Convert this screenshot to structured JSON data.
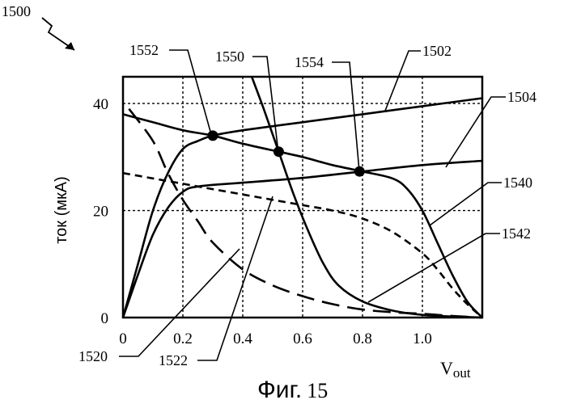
{
  "figure": {
    "number_label": "1500",
    "caption_prefix": "Фиг.",
    "caption_number": "15"
  },
  "chart_data": {
    "type": "line",
    "xlabel_main": "V",
    "xlabel_sub": "out",
    "ylabel": "ток (мкА)",
    "xlim": [
      0,
      1.2
    ],
    "ylim": [
      0,
      45
    ],
    "x_tick_values": [
      0,
      0.2,
      0.4,
      0.6,
      0.8,
      1.0
    ],
    "x_tick_labels": [
      "0",
      "0.2",
      "0.4",
      "0.6",
      "0.8",
      "1.0"
    ],
    "y_tick_values": [
      0,
      20,
      40
    ],
    "y_tick_labels": [
      "0",
      "20",
      "40"
    ],
    "x_grid": [
      0.2,
      0.4,
      0.6,
      0.8,
      1.0
    ],
    "y_grid": [
      20,
      40
    ],
    "grid": true,
    "series": [
      {
        "name": "1502",
        "style": "solid",
        "points": [
          [
            0,
            0
          ],
          [
            0.05,
            10
          ],
          [
            0.1,
            20
          ],
          [
            0.15,
            27
          ],
          [
            0.2,
            31.5
          ],
          [
            0.25,
            33
          ],
          [
            0.3,
            34
          ],
          [
            0.4,
            35
          ],
          [
            0.6,
            36.5
          ],
          [
            0.8,
            38
          ],
          [
            1.0,
            39.5
          ],
          [
            1.2,
            41
          ]
        ]
      },
      {
        "name": "1504",
        "style": "solid",
        "points": [
          [
            0,
            0
          ],
          [
            0.05,
            8
          ],
          [
            0.1,
            15.5
          ],
          [
            0.15,
            20.5
          ],
          [
            0.2,
            23.5
          ],
          [
            0.25,
            24.5
          ],
          [
            0.4,
            25.2
          ],
          [
            0.6,
            26.1
          ],
          [
            0.8,
            27.3
          ],
          [
            1.0,
            28.5
          ],
          [
            1.2,
            29.3
          ]
        ]
      },
      {
        "name": "1540",
        "style": "solid",
        "points": [
          [
            0,
            38
          ],
          [
            0.1,
            36.5
          ],
          [
            0.2,
            35
          ],
          [
            0.3,
            34
          ],
          [
            0.4,
            32.5
          ],
          [
            0.52,
            31
          ],
          [
            0.6,
            30
          ],
          [
            0.7,
            28.5
          ],
          [
            0.8,
            27.3
          ],
          [
            0.9,
            26
          ],
          [
            0.95,
            24
          ],
          [
            1.0,
            20
          ],
          [
            1.05,
            14
          ],
          [
            1.1,
            8
          ],
          [
            1.15,
            3
          ],
          [
            1.2,
            0
          ]
        ]
      },
      {
        "name": "1550",
        "style": "solid",
        "points": [
          [
            0.43,
            45
          ],
          [
            0.47,
            39
          ],
          [
            0.52,
            31
          ],
          [
            0.57,
            23
          ],
          [
            0.62,
            16
          ],
          [
            0.67,
            10
          ],
          [
            0.72,
            6
          ],
          [
            0.8,
            3
          ],
          [
            0.9,
            1.3
          ],
          [
            1.0,
            0.5
          ],
          [
            1.1,
            0.2
          ],
          [
            1.2,
            0
          ]
        ]
      },
      {
        "name": "1522",
        "style": "dashed",
        "points": [
          [
            0,
            27
          ],
          [
            0.1,
            26
          ],
          [
            0.2,
            25
          ],
          [
            0.3,
            24
          ],
          [
            0.4,
            23
          ],
          [
            0.5,
            22
          ],
          [
            0.6,
            21
          ],
          [
            0.7,
            20
          ],
          [
            0.8,
            18.5
          ],
          [
            0.9,
            16
          ],
          [
            1.0,
            12
          ],
          [
            1.05,
            9
          ],
          [
            1.1,
            5.5
          ],
          [
            1.15,
            2.5
          ],
          [
            1.2,
            0
          ]
        ]
      },
      {
        "name": "1520",
        "style": "longdash",
        "points": [
          [
            0.02,
            39
          ],
          [
            0.1,
            33
          ],
          [
            0.15,
            27
          ],
          [
            0.2,
            22
          ],
          [
            0.25,
            18
          ],
          [
            0.3,
            14
          ],
          [
            0.4,
            9
          ],
          [
            0.5,
            6
          ],
          [
            0.6,
            4
          ],
          [
            0.7,
            2.5
          ],
          [
            0.8,
            1.5
          ],
          [
            0.9,
            1
          ],
          [
            1.0,
            0.7
          ],
          [
            1.1,
            0.3
          ],
          [
            1.2,
            0
          ]
        ]
      }
    ],
    "markers": [
      {
        "name": "1552",
        "x": 0.3,
        "y": 34
      },
      {
        "name": "1550",
        "x": 0.52,
        "y": 31
      },
      {
        "name": "1554",
        "x": 0.79,
        "y": 27.3
      }
    ],
    "callouts": [
      "1552",
      "1550",
      "1554",
      "1502",
      "1504",
      "1540",
      "1542",
      "1520",
      "1522"
    ]
  }
}
